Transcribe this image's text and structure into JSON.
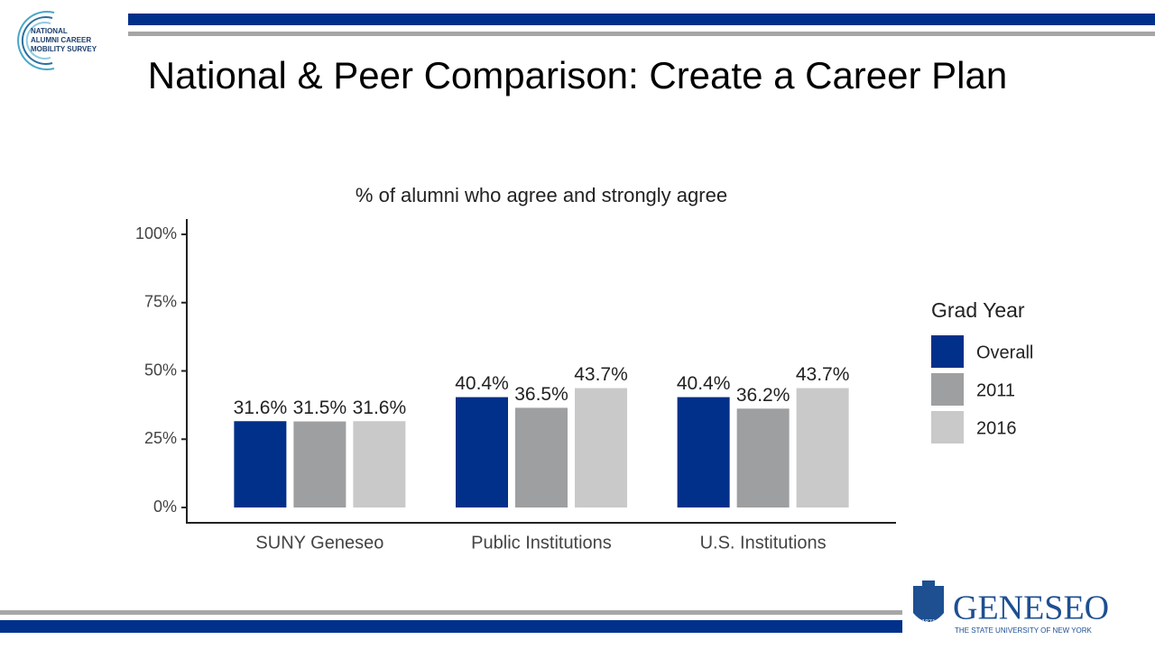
{
  "slide": {
    "title": "National & Peer Comparison: Create a Career Plan",
    "logo_lines": [
      "NATIONAL",
      "ALUMNI CAREER",
      "MOBILITY SURVEY"
    ],
    "school_name": "GENESEO",
    "school_subtitle": "THE STATE UNIVERSITY OF NEW YORK",
    "school_year": "1871"
  },
  "chart_data": {
    "type": "bar",
    "title": "% of alumni who agree and strongly agree",
    "categories": [
      "SUNY Geneseo",
      "Public Institutions",
      "U.S. Institutions"
    ],
    "legend_title": "Grad Year",
    "series": [
      {
        "name": "Overall",
        "color": "#00308a",
        "values": [
          31.6,
          40.4,
          40.4
        ],
        "value_labels": [
          "31.6%",
          "40.4%",
          "40.4%"
        ]
      },
      {
        "name": "2011",
        "color": "#9d9fa1",
        "values": [
          31.5,
          36.5,
          36.2
        ],
        "value_labels": [
          "31.5%",
          "36.5%",
          "36.2%"
        ]
      },
      {
        "name": "2016",
        "color": "#c9c9c9",
        "values": [
          31.6,
          43.7,
          43.7
        ],
        "value_labels": [
          "31.6%",
          "43.7%",
          "43.7%"
        ]
      }
    ],
    "ylim": [
      0,
      100
    ],
    "yticks": [
      {
        "value": 0,
        "label": "0%"
      },
      {
        "value": 25,
        "label": "25%"
      },
      {
        "value": 50,
        "label": "50%"
      },
      {
        "value": 75,
        "label": "75%"
      },
      {
        "value": 100,
        "label": "100%"
      }
    ],
    "legend": "right"
  }
}
